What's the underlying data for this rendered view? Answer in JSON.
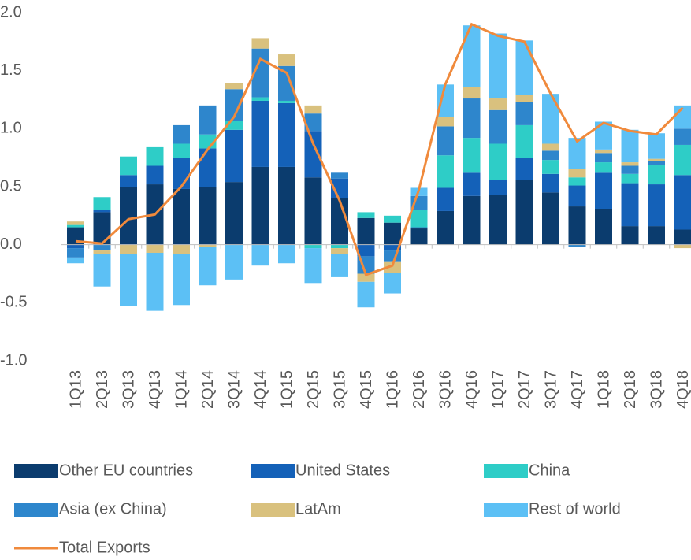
{
  "chart_data": {
    "type": "bar",
    "stacked": true,
    "categories": [
      "1Q13",
      "2Q13",
      "3Q13",
      "4Q13",
      "1Q14",
      "2Q14",
      "3Q14",
      "4Q14",
      "1Q15",
      "2Q15",
      "3Q15",
      "4Q15",
      "1Q16",
      "2Q16",
      "3Q16",
      "4Q16",
      "1Q17",
      "2Q17",
      "3Q17",
      "4Q17",
      "1Q18",
      "2Q18",
      "3Q18",
      "4Q18"
    ],
    "series": [
      {
        "name": "Other EU countries",
        "color": "#0b3c6e",
        "values": [
          0.15,
          0.28,
          0.5,
          0.52,
          0.48,
          0.5,
          0.54,
          0.67,
          0.67,
          0.58,
          0.4,
          0.23,
          0.19,
          0.14,
          0.29,
          0.42,
          0.43,
          0.56,
          0.45,
          0.33,
          0.31,
          0.16,
          0.16,
          0.13
        ]
      },
      {
        "name": "United States",
        "color": "#1461b8",
        "values": [
          -0.03,
          0.02,
          0.1,
          0.16,
          0.27,
          0.33,
          0.45,
          0.57,
          0.55,
          0.4,
          0.17,
          -0.1,
          -0.05,
          0.01,
          0.2,
          0.2,
          0.13,
          0.19,
          0.16,
          0.18,
          0.31,
          0.37,
          0.36,
          0.47
        ]
      },
      {
        "name": "China",
        "color": "#2ecdc7",
        "values": [
          0.02,
          0.11,
          0.16,
          0.16,
          0.12,
          0.12,
          0.08,
          0.03,
          0.02,
          -0.03,
          -0.03,
          0.05,
          0.06,
          0.15,
          0.28,
          0.3,
          0.31,
          0.28,
          0.12,
          0.07,
          0.09,
          0.08,
          0.17,
          0.26
        ]
      },
      {
        "name": "Asia (ex China)",
        "color": "#2e86cc",
        "values": [
          -0.08,
          -0.05,
          0,
          0,
          0.16,
          0.25,
          0.27,
          0.42,
          0.3,
          0.15,
          0.05,
          -0.15,
          -0.1,
          0.12,
          0.25,
          0.34,
          0.29,
          0.2,
          0.08,
          -0.02,
          0.08,
          0.07,
          0.03,
          0.14
        ]
      },
      {
        "name": "LatAm",
        "color": "#d9c17e",
        "values": [
          0.03,
          -0.03,
          -0.08,
          -0.07,
          -0.08,
          -0.02,
          0.05,
          0.09,
          0.1,
          0.07,
          -0.05,
          -0.07,
          -0.09,
          0,
          0.08,
          0.1,
          0.1,
          0.06,
          0.06,
          0.07,
          0.03,
          0.03,
          0.02,
          -0.03
        ]
      },
      {
        "name": "Rest of world",
        "color": "#5cc0f5",
        "values": [
          -0.05,
          -0.28,
          -0.45,
          -0.5,
          -0.44,
          -0.33,
          -0.3,
          -0.18,
          -0.16,
          -0.3,
          -0.2,
          -0.22,
          -0.18,
          0.07,
          0.28,
          0.53,
          0.56,
          0.47,
          0.43,
          0.27,
          0.24,
          0.28,
          0.22,
          0.2
        ]
      }
    ],
    "line": {
      "name": "Total Exports",
      "color": "#f08a3c",
      "values": [
        0.03,
        0.01,
        0.22,
        0.26,
        0.5,
        0.82,
        1.1,
        1.6,
        1.48,
        0.87,
        0.38,
        -0.26,
        -0.18,
        0.47,
        1.38,
        1.9,
        1.8,
        1.75,
        1.3,
        0.89,
        1.05,
        0.98,
        0.95,
        1.18
      ]
    },
    "ylim": [
      -1,
      2
    ],
    "yticks": [
      {
        "value": -1,
        "label": "-1.0"
      },
      {
        "value": -0.5,
        "label": "-0.5"
      },
      {
        "value": 0,
        "label": "0.0"
      },
      {
        "value": 0.5,
        "label": "0.5"
      },
      {
        "value": 1,
        "label": "1.0"
      },
      {
        "value": 1.5,
        "label": "1.5"
      },
      {
        "value": 2,
        "label": "2.0"
      }
    ],
    "legend": "bottom"
  }
}
